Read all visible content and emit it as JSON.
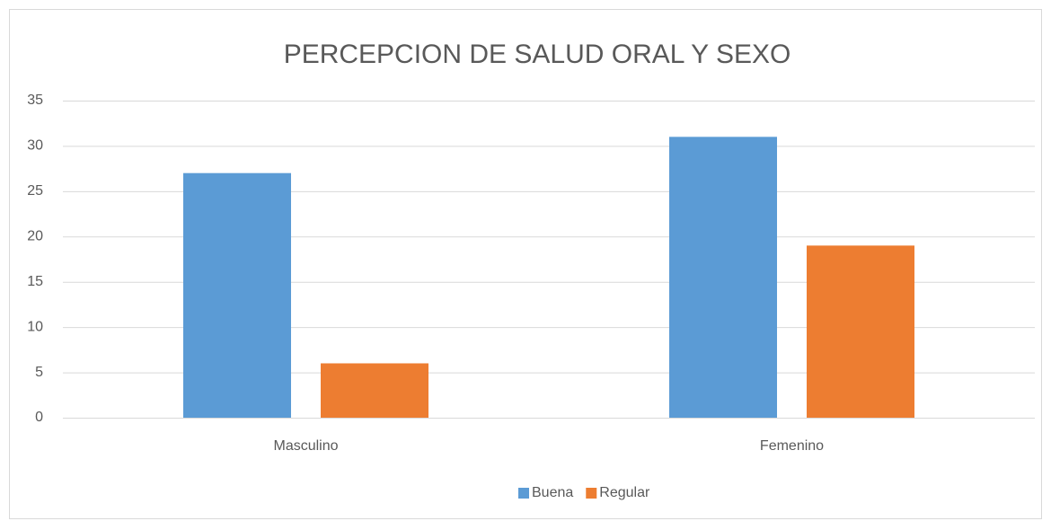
{
  "chart_data": {
    "type": "bar",
    "title": "PERCEPCION DE SALUD ORAL Y SEXO",
    "categories": [
      "Masculino",
      "Femenino"
    ],
    "series": [
      {
        "name": "Buena",
        "color": "#5b9bd5",
        "values": [
          27,
          31
        ]
      },
      {
        "name": "Regular",
        "color": "#ed7d31",
        "values": [
          6,
          19
        ]
      }
    ],
    "ylim": [
      0,
      35
    ],
    "yticks": [
      0,
      5,
      10,
      15,
      20,
      25,
      30,
      35
    ],
    "grid": true,
    "legend": "bottom"
  }
}
